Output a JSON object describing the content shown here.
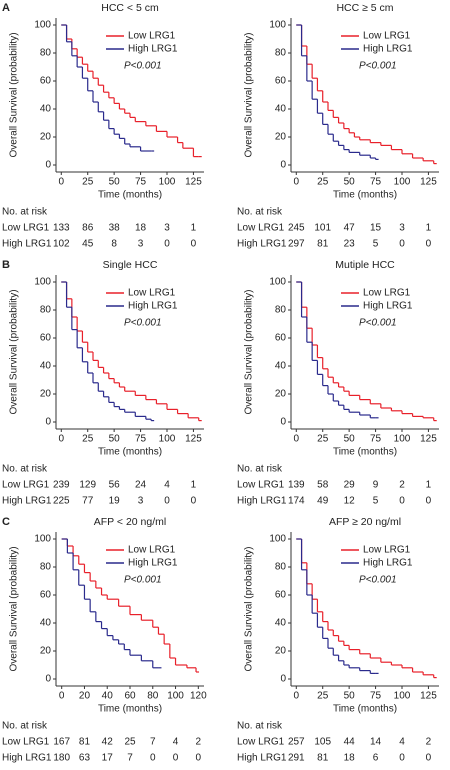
{
  "chart_data": [
    {
      "type": "line",
      "panel": "A",
      "title": "HCC < 5 cm",
      "xlabel": "Time (months)",
      "ylabel": "Overall Survival (probability)",
      "xlim": [
        -5,
        135
      ],
      "ylim": [
        -5,
        105
      ],
      "xticks": [
        0,
        25,
        50,
        75,
        100,
        125
      ],
      "yticks": [
        0,
        20,
        40,
        60,
        80,
        100
      ],
      "series": [
        {
          "name": "Low LRG1",
          "color": "#e8202a",
          "x": [
            0,
            5,
            10,
            15,
            20,
            25,
            30,
            35,
            40,
            45,
            50,
            55,
            60,
            65,
            70,
            80,
            90,
            100,
            110,
            115,
            125,
            130
          ],
          "values": [
            100,
            90,
            83,
            77,
            72,
            67,
            62,
            57,
            52,
            48,
            44,
            40,
            37,
            34,
            31,
            28,
            24,
            20,
            16,
            12,
            6,
            6
          ]
        },
        {
          "name": "High LRG1",
          "color": "#2a2a8c",
          "x": [
            0,
            5,
            10,
            15,
            20,
            25,
            30,
            35,
            40,
            45,
            50,
            55,
            60,
            65,
            75,
            85
          ],
          "values": [
            100,
            88,
            78,
            70,
            62,
            53,
            45,
            38,
            32,
            26,
            22,
            19,
            15,
            13,
            10,
            10
          ]
        }
      ],
      "annotation": "P<0.001",
      "risk_table": {
        "title": "No. at risk",
        "rows": [
          {
            "name": "Low LRG1",
            "values": [
              133,
              86,
              38,
              18,
              3,
              1
            ]
          },
          {
            "name": "High LRG1",
            "values": [
              102,
              45,
              8,
              3,
              0,
              0
            ]
          }
        ]
      }
    },
    {
      "type": "line",
      "title": "HCC ≥ 5 cm",
      "xlabel": "Time (months)",
      "ylabel": "Overall Survival (probability)",
      "xlim": [
        -5,
        135
      ],
      "ylim": [
        -5,
        105
      ],
      "xticks": [
        0,
        25,
        50,
        75,
        100,
        125
      ],
      "yticks": [
        0,
        20,
        40,
        60,
        80,
        100
      ],
      "series": [
        {
          "name": "Low LRG1",
          "color": "#e8202a",
          "x": [
            0,
            5,
            10,
            15,
            20,
            25,
            30,
            35,
            40,
            45,
            50,
            55,
            60,
            70,
            80,
            90,
            100,
            110,
            120,
            130
          ],
          "values": [
            100,
            85,
            72,
            62,
            53,
            45,
            39,
            34,
            30,
            26,
            23,
            20,
            18,
            16,
            14,
            11,
            8,
            5,
            3,
            1
          ]
        },
        {
          "name": "High LRG1",
          "color": "#2a2a8c",
          "x": [
            0,
            5,
            10,
            15,
            20,
            25,
            30,
            35,
            40,
            45,
            50,
            60,
            70,
            75
          ],
          "values": [
            100,
            78,
            60,
            47,
            37,
            29,
            22,
            17,
            14,
            11,
            9,
            7,
            5,
            4
          ]
        }
      ],
      "annotation": "P<0.001",
      "risk_table": {
        "title": "No. at risk",
        "rows": [
          {
            "name": "Low LRG1",
            "values": [
              245,
              101,
              47,
              15,
              3,
              1
            ]
          },
          {
            "name": "High LRG1",
            "values": [
              297,
              81,
              23,
              5,
              0,
              0
            ]
          }
        ]
      }
    },
    {
      "type": "line",
      "panel": "B",
      "title": "Single HCC",
      "xlabel": "Time (months)",
      "ylabel": "Overall Survival (probability)",
      "xlim": [
        -5,
        135
      ],
      "ylim": [
        -5,
        105
      ],
      "xticks": [
        0,
        25,
        50,
        75,
        100,
        125
      ],
      "yticks": [
        0,
        20,
        40,
        60,
        80,
        100
      ],
      "series": [
        {
          "name": "Low LRG1",
          "color": "#e8202a",
          "x": [
            0,
            5,
            10,
            15,
            20,
            25,
            30,
            35,
            40,
            45,
            50,
            55,
            60,
            70,
            80,
            90,
            100,
            110,
            120,
            130
          ],
          "values": [
            100,
            88,
            75,
            65,
            57,
            50,
            44,
            39,
            35,
            31,
            28,
            25,
            22,
            19,
            16,
            13,
            9,
            6,
            3,
            1
          ]
        },
        {
          "name": "High LRG1",
          "color": "#2a2a8c",
          "x": [
            0,
            5,
            10,
            15,
            20,
            25,
            30,
            35,
            40,
            45,
            50,
            55,
            60,
            70,
            80,
            85
          ],
          "values": [
            100,
            82,
            66,
            53,
            43,
            35,
            28,
            22,
            18,
            14,
            11,
            9,
            7,
            4,
            2,
            1
          ]
        }
      ],
      "annotation": "P<0.001",
      "risk_table": {
        "title": "No. at risk",
        "rows": [
          {
            "name": "Low LRG1",
            "values": [
              239,
              129,
              56,
              24,
              4,
              1
            ]
          },
          {
            "name": "High LRG1",
            "values": [
              225,
              77,
              19,
              3,
              0,
              0
            ]
          }
        ]
      }
    },
    {
      "type": "line",
      "title": "Mutiple HCC",
      "xlabel": "Time (months)",
      "ylabel": "Overall Survival (probability)",
      "xlim": [
        -5,
        135
      ],
      "ylim": [
        -5,
        105
      ],
      "xticks": [
        0,
        25,
        50,
        75,
        100,
        125
      ],
      "yticks": [
        0,
        20,
        40,
        60,
        80,
        100
      ],
      "series": [
        {
          "name": "Low LRG1",
          "color": "#e8202a",
          "x": [
            0,
            5,
            10,
            15,
            20,
            25,
            30,
            35,
            40,
            45,
            50,
            60,
            70,
            80,
            90,
            100,
            110,
            120,
            130
          ],
          "values": [
            100,
            82,
            67,
            55,
            46,
            38,
            32,
            28,
            25,
            22,
            19,
            16,
            13,
            10,
            8,
            6,
            4,
            3,
            1
          ]
        },
        {
          "name": "High LRG1",
          "color": "#2a2a8c",
          "x": [
            0,
            5,
            10,
            15,
            20,
            25,
            30,
            35,
            40,
            45,
            50,
            60,
            70,
            75
          ],
          "values": [
            100,
            75,
            57,
            44,
            34,
            26,
            20,
            15,
            12,
            9,
            7,
            5,
            3,
            3
          ]
        }
      ],
      "annotation": "P<0.001",
      "risk_table": {
        "title": "No. at risk",
        "rows": [
          {
            "name": "Low LRG1",
            "values": [
              139,
              58,
              29,
              9,
              2,
              1
            ]
          },
          {
            "name": "High LRG1",
            "values": [
              174,
              49,
              12,
              5,
              0,
              0
            ]
          }
        ]
      }
    },
    {
      "type": "line",
      "panel": "C",
      "title": "AFP < 20 ng/ml",
      "xlabel": "Time (months)",
      "ylabel": "Overall Survival (probability)",
      "xlim": [
        -5,
        125
      ],
      "ylim": [
        -5,
        105
      ],
      "xticks": [
        0,
        20,
        40,
        60,
        80,
        100,
        120
      ],
      "yticks": [
        0,
        20,
        40,
        60,
        80,
        100
      ],
      "series": [
        {
          "name": "Low LRG1",
          "color": "#e8202a",
          "x": [
            0,
            5,
            10,
            15,
            20,
            25,
            30,
            35,
            40,
            50,
            60,
            70,
            80,
            85,
            90,
            95,
            100,
            110,
            118
          ],
          "values": [
            100,
            95,
            88,
            82,
            76,
            70,
            65,
            60,
            57,
            52,
            46,
            42,
            37,
            32,
            25,
            15,
            10,
            8,
            5
          ]
        },
        {
          "name": "High LRG1",
          "color": "#2a2a8c",
          "x": [
            0,
            5,
            10,
            15,
            20,
            25,
            30,
            35,
            40,
            45,
            50,
            55,
            60,
            70,
            80,
            85
          ],
          "values": [
            100,
            90,
            78,
            67,
            57,
            48,
            41,
            36,
            31,
            28,
            25,
            21,
            17,
            13,
            8,
            8
          ]
        }
      ],
      "annotation": "P<0.001",
      "risk_table": {
        "title": "No. at risk",
        "rows": [
          {
            "name": "Low LRG1",
            "values": [
              167,
              81,
              42,
              25,
              7,
              4,
              2
            ]
          },
          {
            "name": "High LRG1",
            "values": [
              180,
              63,
              17,
              7,
              0,
              0,
              0
            ]
          }
        ]
      }
    },
    {
      "type": "line",
      "title": "AFP ≥ 20 ng/ml",
      "xlabel": "Time (months)",
      "ylabel": "Overall Survival (probability)",
      "xlim": [
        -5,
        135
      ],
      "ylim": [
        -5,
        105
      ],
      "xticks": [
        0,
        25,
        50,
        75,
        100,
        125
      ],
      "yticks": [
        0,
        20,
        40,
        60,
        80,
        100
      ],
      "series": [
        {
          "name": "Low LRG1",
          "color": "#e8202a",
          "x": [
            0,
            5,
            10,
            15,
            20,
            25,
            30,
            35,
            40,
            45,
            50,
            60,
            70,
            80,
            90,
            100,
            110,
            120,
            130
          ],
          "values": [
            100,
            83,
            68,
            57,
            48,
            41,
            35,
            31,
            27,
            24,
            21,
            18,
            15,
            12,
            10,
            8,
            5,
            3,
            1
          ]
        },
        {
          "name": "High LRG1",
          "color": "#2a2a8c",
          "x": [
            0,
            5,
            10,
            15,
            20,
            25,
            30,
            35,
            40,
            45,
            50,
            60,
            70,
            75
          ],
          "values": [
            100,
            78,
            60,
            47,
            37,
            29,
            22,
            17,
            13,
            10,
            8,
            6,
            4,
            4
          ]
        }
      ],
      "annotation": "P<0.001",
      "risk_table": {
        "title": "No. at risk",
        "rows": [
          {
            "name": "Low LRG1",
            "values": [
              257,
              105,
              44,
              14,
              4,
              2
            ]
          },
          {
            "name": "High LRG1",
            "values": [
              291,
              81,
              18,
              6,
              0,
              0
            ]
          }
        ]
      }
    }
  ]
}
